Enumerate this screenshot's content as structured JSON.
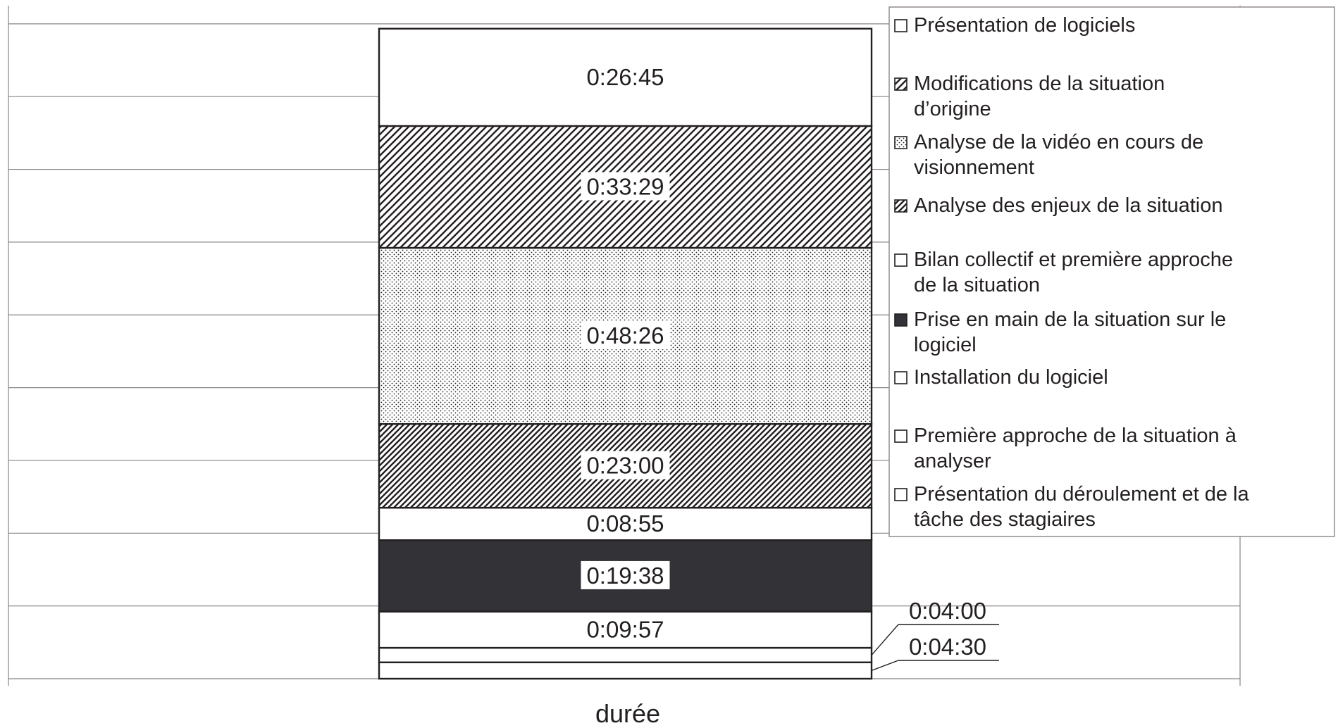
{
  "chart_data": {
    "type": "bar",
    "stacked": true,
    "orientation": "vertical",
    "xlabel": "durée",
    "ylim": [
      "0:00:00",
      "3:05:00"
    ],
    "grid": true,
    "legend_position": "right",
    "series": [
      {
        "name": "Installation du logiciel",
        "value": "0:04:30",
        "fill": "white"
      },
      {
        "name": "Présentation du déroulement et de la tâche des stagiaires",
        "value": "0:04:00",
        "fill": "white"
      },
      {
        "name": "Première approche de la situation à analyser",
        "value": "0:09:57",
        "fill": "white"
      },
      {
        "name": "Prise en main de la situation sur le logiciel",
        "value": "0:19:38",
        "fill": "solid"
      },
      {
        "name": "Bilan collectif et première approche de la situation",
        "value": "0:08:55",
        "fill": "white"
      },
      {
        "name": "Analyse des enjeux de la situation",
        "value": "0:23:00",
        "fill": "hatch-dense"
      },
      {
        "name": "Analyse de la vidéo en cours de visionnement",
        "value": "0:48:26",
        "fill": "dots"
      },
      {
        "name": "Modifications de la situation d’origine",
        "value": "0:33:29",
        "fill": "hatch"
      },
      {
        "name": "Présentation de logiciels",
        "value": "0:26:45",
        "fill": "white"
      }
    ],
    "legend": [
      {
        "label": "Présentation de logiciels",
        "swatch": "white"
      },
      {
        "label": "Modifications de la situation d’origine",
        "swatch": "hatch"
      },
      {
        "label": "Analyse de la vidéo en cours de visionnement",
        "swatch": "dots"
      },
      {
        "label": "Analyse des enjeux de la situation",
        "swatch": "hatch-dense"
      },
      {
        "label": "Bilan collectif et première approche de la situation",
        "swatch": "white"
      },
      {
        "label": "Prise en main de la situation sur le logiciel",
        "swatch": "solid"
      },
      {
        "label": "Installation du logiciel",
        "swatch": "white"
      },
      {
        "label": "Première approche de la situation à analyser",
        "swatch": "white"
      },
      {
        "label": "Présentation du déroulement et de la tâche des stagiaires",
        "swatch": "white"
      }
    ]
  },
  "colors": {
    "solid": "#333236",
    "border": "#231f20",
    "grid": "#8a8486"
  }
}
